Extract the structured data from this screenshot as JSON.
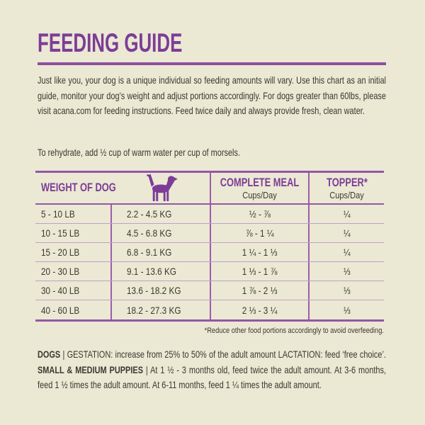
{
  "page": {
    "background_color": "#ebe8d4",
    "accent_color": "#7c3d96"
  },
  "header": {
    "title": "FEEDING GUIDE"
  },
  "intro": {
    "text": "Just like you, your dog is a unique individual so feeding amounts will vary. Use this chart as an initial guide, monitor your dog’s weight and adjust portions accordingly. For dogs greater than 60lbs, please visit acana.com for feeding instructions. Feed twice daily and always provide fresh, clean water."
  },
  "rehydrate": {
    "text": "To rehydrate, add ½ cup of warm water per cup of morsels."
  },
  "table": {
    "header": {
      "weight_label": "WEIGHT OF DOG",
      "dog_icon": "dog-silhouette-icon",
      "complete_meal_label": "COMPLETE MEAL",
      "complete_meal_sub": "Cups/Day",
      "topper_label": "TOPPER*",
      "topper_sub": "Cups/Day"
    },
    "rows": [
      {
        "lb": "5 - 10 LB",
        "kg": "2.2 - 4.5 KG",
        "meal": "½ - ⅞",
        "topper": "¼"
      },
      {
        "lb": "10 - 15 LB",
        "kg": "4.5 - 6.8 KG",
        "meal": "⅞ - 1 ¼",
        "topper": "¼"
      },
      {
        "lb": "15 - 20 LB",
        "kg": "6.8 - 9.1 KG",
        "meal": "1 ¼ - 1 ⅓",
        "topper": "¼"
      },
      {
        "lb": "20 - 30 LB",
        "kg": "9.1 - 13.6 KG",
        "meal": "1 ⅓ - 1 ⅞",
        "topper": "⅓"
      },
      {
        "lb": "30 - 40 LB",
        "kg": "13.6 - 18.2 KG",
        "meal": "1 ⅞ - 2 ⅓",
        "topper": "⅓"
      },
      {
        "lb": "40 - 60 LB",
        "kg": "18.2 - 27.3 KG",
        "meal": "2 ⅓ - 3 ¼",
        "topper": "⅓"
      }
    ],
    "footnote": "*Reduce other food portions accordingly to avoid overfeeding."
  },
  "notes": {
    "dogs_segments": [
      {
        "text": "DOGS",
        "bold": true
      },
      {
        "text": " | GESTATION: increase from 25% to 50% of the adult amount LACTATION: feed ‘free choice’. ",
        "bold": false
      },
      {
        "text": "SMALL & MEDIUM PUPPIES",
        "bold": true
      },
      {
        "text": " | At 1 ½ - 3 months old, feed twice the adult amount. At 3-6 months, feed 1 ½ times the adult amount. At 6-11 months, feed 1 ¼ times the adult amount.",
        "bold": false
      }
    ]
  }
}
